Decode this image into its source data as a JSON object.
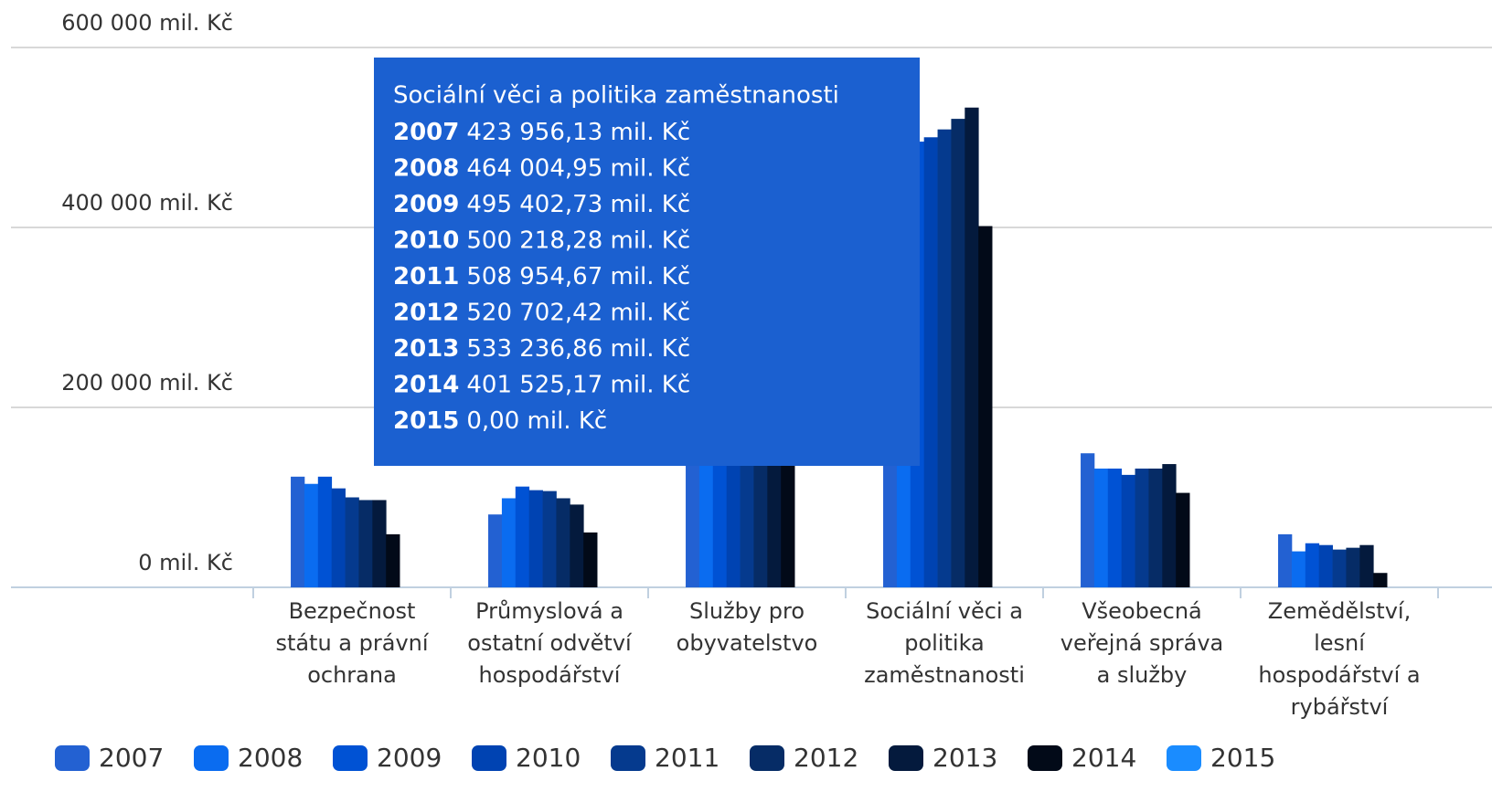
{
  "chart_data": {
    "type": "bar",
    "categories": [
      "Bezpečnost státu a právní ochrana",
      "Průmyslová a ostatní odvětví hospodářství",
      "Služby pro obyvatelstvo",
      "Sociální věci a politika zaměstnanosti",
      "Všeobecná veřejná správa a služby",
      "Zemědělství, lesní hospodářství a rybářství"
    ],
    "ylim": [
      0,
      600000
    ],
    "yticks": [
      {
        "value": 0,
        "label": "0 mil. Kč"
      },
      {
        "value": 200000,
        "label": "200 000 mil. Kč"
      },
      {
        "value": 400000,
        "label": "400 000 mil. Kč"
      },
      {
        "value": 600000,
        "label": "600 000 mil. Kč"
      }
    ],
    "grid": true,
    "legend": "bottom",
    "tooltip": {
      "category": "Sociální věci a politika zaměstnanosti"
    },
    "series": [
      {
        "name": "2007",
        "color": "#2361d2",
        "values": [
          123000,
          81000,
          160000,
          423956.13,
          149000,
          59000
        ],
        "value_labels": [
          null,
          null,
          null,
          "423 956,13 mil. Kč",
          null,
          null
        ]
      },
      {
        "name": "2008",
        "color": "#0a6cf0",
        "values": [
          115000,
          99000,
          165000,
          464004.95,
          132000,
          40000
        ],
        "value_labels": [
          null,
          null,
          null,
          "464 004,95 mil. Kč",
          null,
          null
        ]
      },
      {
        "name": "2009",
        "color": "#0052d4",
        "values": [
          123000,
          112000,
          170000,
          495402.73,
          132000,
          49000
        ],
        "value_labels": [
          null,
          null,
          null,
          "495 402,73 mil. Kč",
          null,
          null
        ]
      },
      {
        "name": "2010",
        "color": "#0043b2",
        "values": [
          110000,
          108000,
          172000,
          500218.28,
          125000,
          47000
        ],
        "value_labels": [
          null,
          null,
          null,
          "500 218,28 mil. Kč",
          null,
          null
        ]
      },
      {
        "name": "2011",
        "color": "#053a8e",
        "values": [
          100000,
          107000,
          175000,
          508954.67,
          132000,
          42000
        ],
        "value_labels": [
          null,
          null,
          null,
          "508 954,67 mil. Kč",
          null,
          null
        ]
      },
      {
        "name": "2012",
        "color": "#062c66",
        "values": [
          97000,
          99000,
          178000,
          520702.42,
          132000,
          44000
        ],
        "value_labels": [
          null,
          null,
          null,
          "520 702,42 mil. Kč",
          null,
          null
        ]
      },
      {
        "name": "2013",
        "color": "#041a3d",
        "values": [
          97000,
          92000,
          182000,
          533236.86,
          137000,
          47000
        ],
        "value_labels": [
          null,
          null,
          null,
          "533 236,86 mil. Kč",
          null,
          null
        ]
      },
      {
        "name": "2014",
        "color": "#020a18",
        "values": [
          59000,
          61000,
          150000,
          401525.17,
          105000,
          16000
        ],
        "value_labels": [
          null,
          null,
          null,
          "401 525,17 mil. Kč",
          null,
          null
        ]
      },
      {
        "name": "2015",
        "color": "#1a8cff",
        "values": [
          0,
          0,
          0,
          0,
          0,
          0
        ],
        "value_labels": [
          null,
          null,
          null,
          "0,00 mil. Kč",
          null,
          null
        ]
      }
    ]
  }
}
